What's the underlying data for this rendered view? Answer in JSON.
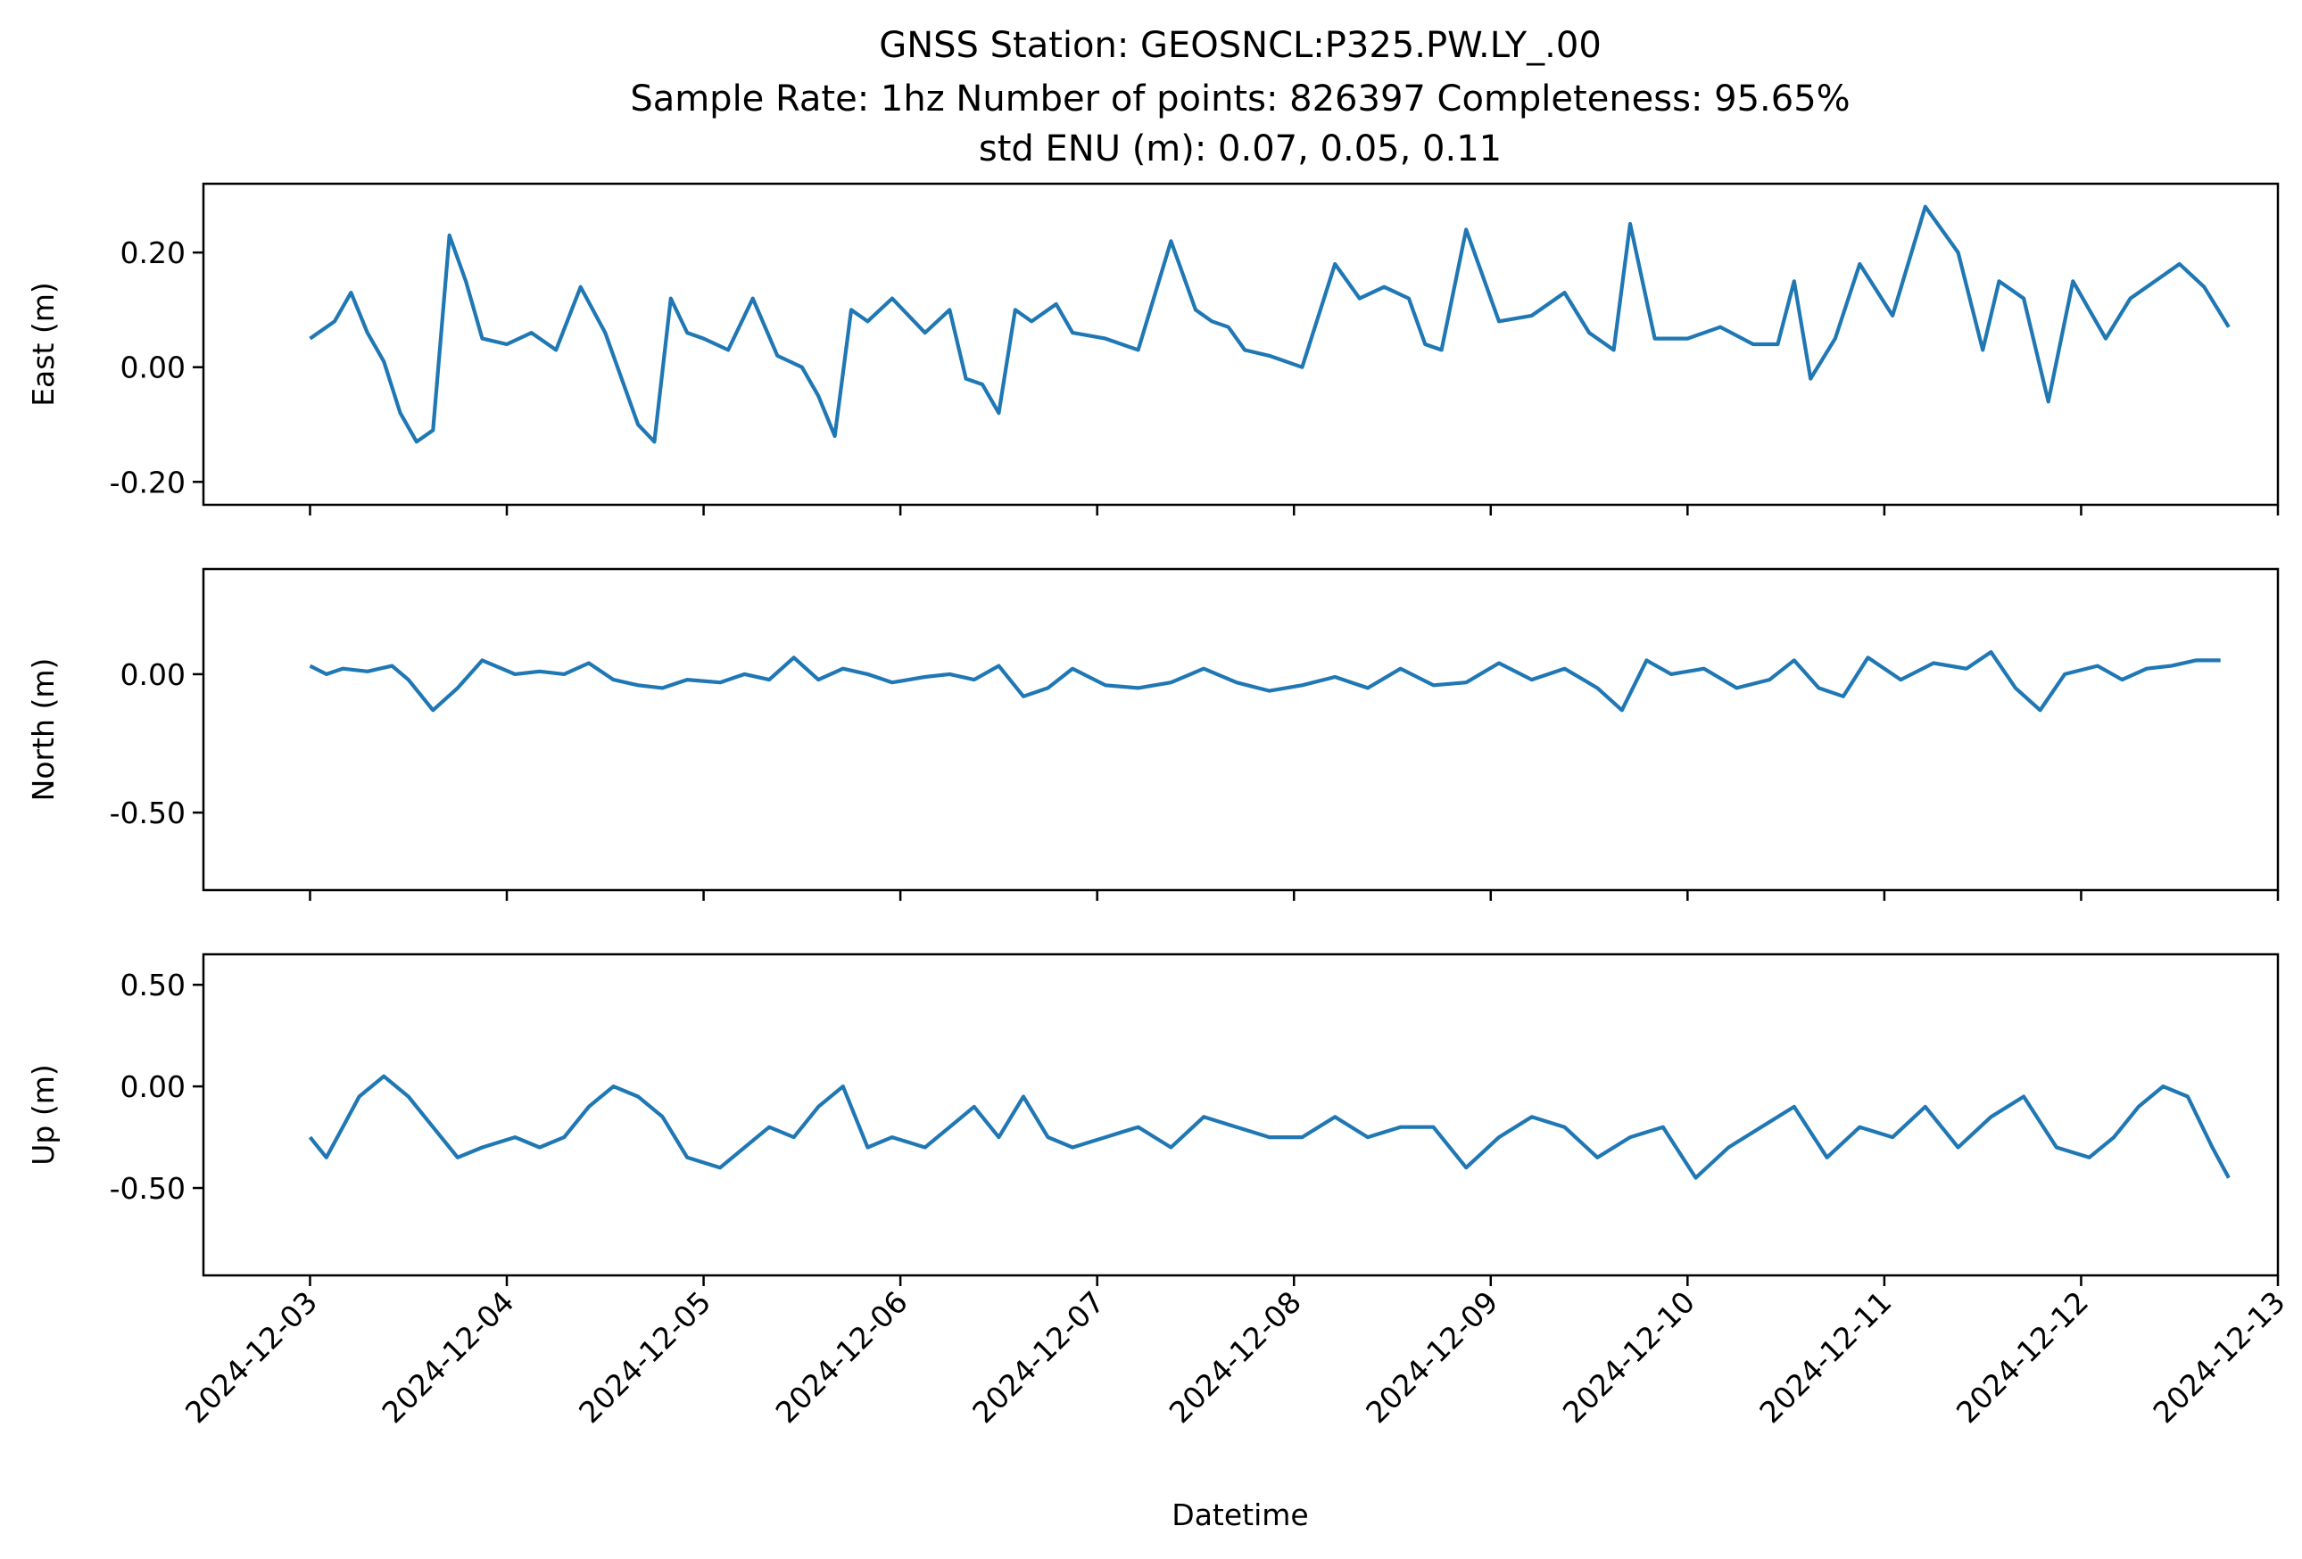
{
  "title_lines": [
    "GNSS Station: GEOSNCL:P325.PW.LY_.00",
    "Sample Rate: 1hz   Number of points: 826397    Completeness:  95.65%",
    "std ENU (m):  0.07, 0.05, 0.11"
  ],
  "chart_data": {
    "type": "line",
    "xlabel": "Datetime",
    "x_range": [
      "2024-12-02T11:00",
      "2024-12-13T00:00"
    ],
    "x_ticks": [
      "2024-12-03",
      "2024-12-04",
      "2024-12-05",
      "2024-12-06",
      "2024-12-07",
      "2024-12-08",
      "2024-12-09",
      "2024-12-10",
      "2024-12-11",
      "2024-12-12",
      "2024-12-13"
    ],
    "color": "#1f77b4",
    "grid": false,
    "panels": [
      {
        "ylabel": "East (m)",
        "ylim": [
          -0.24,
          0.32
        ],
        "yticks": [
          0.2,
          0.0,
          -0.2
        ],
        "ytick_labels": [
          "0.20",
          "0.00",
          "-0.20"
        ],
        "series": {
          "x": [
            "2024-12-03T00:00",
            "2024-12-03T03:00",
            "2024-12-03T05:00",
            "2024-12-03T07:00",
            "2024-12-03T09:00",
            "2024-12-03T11:00",
            "2024-12-03T13:00",
            "2024-12-03T15:00",
            "2024-12-03T17:00",
            "2024-12-03T19:00",
            "2024-12-03T21:00",
            "2024-12-04T00:00",
            "2024-12-04T03:00",
            "2024-12-04T06:00",
            "2024-12-04T09:00",
            "2024-12-04T12:00",
            "2024-12-04T14:00",
            "2024-12-04T16:00",
            "2024-12-04T18:00",
            "2024-12-04T20:00",
            "2024-12-04T22:00",
            "2024-12-05T00:00",
            "2024-12-05T03:00",
            "2024-12-05T06:00",
            "2024-12-05T09:00",
            "2024-12-05T12:00",
            "2024-12-05T14:00",
            "2024-12-05T16:00",
            "2024-12-05T18:00",
            "2024-12-05T20:00",
            "2024-12-05T23:00",
            "2024-12-06T03:00",
            "2024-12-06T06:00",
            "2024-12-06T08:00",
            "2024-12-06T10:00",
            "2024-12-06T12:00",
            "2024-12-06T14:00",
            "2024-12-06T16:00",
            "2024-12-06T19:00",
            "2024-12-06T21:00",
            "2024-12-07T01:00",
            "2024-12-07T05:00",
            "2024-12-07T09:00",
            "2024-12-07T12:00",
            "2024-12-07T14:00",
            "2024-12-07T16:00",
            "2024-12-07T18:00",
            "2024-12-07T21:00",
            "2024-12-08T01:00",
            "2024-12-08T05:00",
            "2024-12-08T08:00",
            "2024-12-08T11:00",
            "2024-12-08T14:00",
            "2024-12-08T16:00",
            "2024-12-08T18:00",
            "2024-12-08T21:00",
            "2024-12-09T01:00",
            "2024-12-09T05:00",
            "2024-12-09T09:00",
            "2024-12-09T12:00",
            "2024-12-09T15:00",
            "2024-12-09T17:00",
            "2024-12-09T20:00",
            "2024-12-10T00:00",
            "2024-12-10T04:00",
            "2024-12-10T08:00",
            "2024-12-10T11:00",
            "2024-12-10T13:00",
            "2024-12-10T15:00",
            "2024-12-10T18:00",
            "2024-12-10T21:00",
            "2024-12-11T01:00",
            "2024-12-11T05:00",
            "2024-12-11T09:00",
            "2024-12-11T12:00",
            "2024-12-11T14:00",
            "2024-12-11T17:00",
            "2024-12-11T20:00",
            "2024-12-11T23:00",
            "2024-12-12T03:00",
            "2024-12-12T06:00",
            "2024-12-12T09:00",
            "2024-12-12T12:00",
            "2024-12-12T15:00",
            "2024-12-12T18:00"
          ],
          "y": [
            0.05,
            0.08,
            0.13,
            0.06,
            0.01,
            -0.08,
            -0.13,
            -0.11,
            0.23,
            0.15,
            0.05,
            0.04,
            0.06,
            0.03,
            0.14,
            0.06,
            -0.02,
            -0.1,
            -0.13,
            0.12,
            0.06,
            0.05,
            0.03,
            0.12,
            0.02,
            0.0,
            -0.05,
            -0.12,
            0.1,
            0.08,
            0.12,
            0.06,
            0.1,
            -0.02,
            -0.03,
            -0.08,
            0.1,
            0.08,
            0.11,
            0.06,
            0.05,
            0.03,
            0.22,
            0.1,
            0.08,
            0.07,
            0.03,
            0.02,
            0.0,
            0.18,
            0.12,
            0.14,
            0.12,
            0.04,
            0.03,
            0.24,
            0.08,
            0.09,
            0.13,
            0.06,
            0.03,
            0.25,
            0.05,
            0.05,
            0.07,
            0.04,
            0.04,
            0.15,
            -0.02,
            0.05,
            0.18,
            0.09,
            0.28,
            0.2,
            0.03,
            0.15,
            0.12,
            -0.06,
            0.15,
            0.05,
            0.12,
            0.15,
            0.18,
            0.14,
            0.07
          ]
        }
      },
      {
        "ylabel": "North (m)",
        "ylim": [
          -0.78,
          0.38
        ],
        "yticks": [
          0.0,
          -0.5
        ],
        "ytick_labels": [
          "0.00",
          "-0.50"
        ],
        "series": {
          "x": [
            "2024-12-03T00:00",
            "2024-12-03T02:00",
            "2024-12-03T04:00",
            "2024-12-03T07:00",
            "2024-12-03T10:00",
            "2024-12-03T12:00",
            "2024-12-03T15:00",
            "2024-12-03T18:00",
            "2024-12-03T21:00",
            "2024-12-04T01:00",
            "2024-12-04T04:00",
            "2024-12-04T07:00",
            "2024-12-04T10:00",
            "2024-12-04T13:00",
            "2024-12-04T16:00",
            "2024-12-04T19:00",
            "2024-12-04T22:00",
            "2024-12-05T02:00",
            "2024-12-05T05:00",
            "2024-12-05T08:00",
            "2024-12-05T11:00",
            "2024-12-05T14:00",
            "2024-12-05T17:00",
            "2024-12-05T20:00",
            "2024-12-05T23:00",
            "2024-12-06T03:00",
            "2024-12-06T06:00",
            "2024-12-06T09:00",
            "2024-12-06T12:00",
            "2024-12-06T15:00",
            "2024-12-06T18:00",
            "2024-12-06T21:00",
            "2024-12-07T01:00",
            "2024-12-07T05:00",
            "2024-12-07T09:00",
            "2024-12-07T13:00",
            "2024-12-07T17:00",
            "2024-12-07T21:00",
            "2024-12-08T01:00",
            "2024-12-08T05:00",
            "2024-12-08T09:00",
            "2024-12-08T13:00",
            "2024-12-08T17:00",
            "2024-12-08T21:00",
            "2024-12-09T01:00",
            "2024-12-09T05:00",
            "2024-12-09T09:00",
            "2024-12-09T13:00",
            "2024-12-09T16:00",
            "2024-12-09T19:00",
            "2024-12-09T22:00",
            "2024-12-10T02:00",
            "2024-12-10T06:00",
            "2024-12-10T10:00",
            "2024-12-10T13:00",
            "2024-12-10T16:00",
            "2024-12-10T19:00",
            "2024-12-10T22:00",
            "2024-12-11T02:00",
            "2024-12-11T06:00",
            "2024-12-11T10:00",
            "2024-12-11T13:00",
            "2024-12-11T16:00",
            "2024-12-11T19:00",
            "2024-12-11T22:00",
            "2024-12-12T02:00",
            "2024-12-12T05:00",
            "2024-12-12T08:00",
            "2024-12-12T11:00",
            "2024-12-12T14:00",
            "2024-12-12T17:00"
          ],
          "y": [
            0.03,
            0.0,
            0.02,
            0.01,
            0.03,
            -0.02,
            -0.13,
            -0.05,
            0.05,
            0.0,
            0.01,
            0.0,
            0.04,
            -0.02,
            -0.04,
            -0.05,
            -0.02,
            -0.03,
            0.0,
            -0.02,
            0.06,
            -0.02,
            0.02,
            0.0,
            -0.03,
            -0.01,
            0.0,
            -0.02,
            0.03,
            -0.08,
            -0.05,
            0.02,
            -0.04,
            -0.05,
            -0.03,
            0.02,
            -0.03,
            -0.06,
            -0.04,
            -0.01,
            -0.05,
            0.02,
            -0.04,
            -0.03,
            0.04,
            -0.02,
            0.02,
            -0.05,
            -0.13,
            0.05,
            0.0,
            0.02,
            -0.05,
            -0.02,
            0.05,
            -0.05,
            -0.08,
            0.06,
            -0.02,
            0.04,
            0.02,
            0.08,
            -0.05,
            -0.13,
            0.0,
            0.03,
            -0.02,
            0.02,
            0.03,
            0.05,
            0.05
          ]
        }
      },
      {
        "ylabel": "Up (m)",
        "ylim": [
          -0.93,
          0.65
        ],
        "yticks": [
          0.5,
          0.0,
          -0.5
        ],
        "ytick_labels": [
          "0.50",
          "0.00",
          "-0.50"
        ],
        "series": {
          "x": [
            "2024-12-03T00:00",
            "2024-12-03T02:00",
            "2024-12-03T04:00",
            "2024-12-03T06:00",
            "2024-12-03T09:00",
            "2024-12-03T12:00",
            "2024-12-03T15:00",
            "2024-12-03T18:00",
            "2024-12-03T21:00",
            "2024-12-04T01:00",
            "2024-12-04T04:00",
            "2024-12-04T07:00",
            "2024-12-04T10:00",
            "2024-12-04T13:00",
            "2024-12-04T16:00",
            "2024-12-04T19:00",
            "2024-12-04T22:00",
            "2024-12-05T02:00",
            "2024-12-05T05:00",
            "2024-12-05T08:00",
            "2024-12-05T11:00",
            "2024-12-05T14:00",
            "2024-12-05T17:00",
            "2024-12-05T20:00",
            "2024-12-05T23:00",
            "2024-12-06T03:00",
            "2024-12-06T06:00",
            "2024-12-06T09:00",
            "2024-12-06T12:00",
            "2024-12-06T15:00",
            "2024-12-06T18:00",
            "2024-12-06T21:00",
            "2024-12-07T01:00",
            "2024-12-07T05:00",
            "2024-12-07T09:00",
            "2024-12-07T13:00",
            "2024-12-07T17:00",
            "2024-12-07T21:00",
            "2024-12-08T01:00",
            "2024-12-08T05:00",
            "2024-12-08T09:00",
            "2024-12-08T13:00",
            "2024-12-08T17:00",
            "2024-12-08T21:00",
            "2024-12-09T01:00",
            "2024-12-09T05:00",
            "2024-12-09T09:00",
            "2024-12-09T13:00",
            "2024-12-09T17:00",
            "2024-12-09T21:00",
            "2024-12-10T01:00",
            "2024-12-10T05:00",
            "2024-12-10T09:00",
            "2024-12-10T13:00",
            "2024-12-10T17:00",
            "2024-12-10T21:00",
            "2024-12-11T01:00",
            "2024-12-11T05:00",
            "2024-12-11T09:00",
            "2024-12-11T13:00",
            "2024-12-11T17:00",
            "2024-12-11T21:00",
            "2024-12-12T01:00",
            "2024-12-12T04:00",
            "2024-12-12T07:00",
            "2024-12-12T10:00",
            "2024-12-12T13:00",
            "2024-12-12T16:00",
            "2024-12-12T18:00"
          ],
          "y": [
            -0.25,
            -0.35,
            -0.2,
            -0.05,
            0.05,
            -0.05,
            -0.2,
            -0.35,
            -0.3,
            -0.25,
            -0.3,
            -0.25,
            -0.1,
            0.0,
            -0.05,
            -0.15,
            -0.35,
            -0.4,
            -0.3,
            -0.2,
            -0.25,
            -0.1,
            0.0,
            -0.3,
            -0.25,
            -0.3,
            -0.2,
            -0.1,
            -0.25,
            -0.05,
            -0.25,
            -0.3,
            -0.25,
            -0.2,
            -0.3,
            -0.15,
            -0.2,
            -0.25,
            -0.25,
            -0.15,
            -0.25,
            -0.2,
            -0.2,
            -0.4,
            -0.25,
            -0.15,
            -0.2,
            -0.35,
            -0.25,
            -0.2,
            -0.45,
            -0.3,
            -0.2,
            -0.1,
            -0.35,
            -0.2,
            -0.25,
            -0.1,
            -0.3,
            -0.15,
            -0.05,
            -0.3,
            -0.35,
            -0.25,
            -0.1,
            0.0,
            -0.05,
            -0.3,
            -0.45
          ]
        }
      }
    ]
  }
}
